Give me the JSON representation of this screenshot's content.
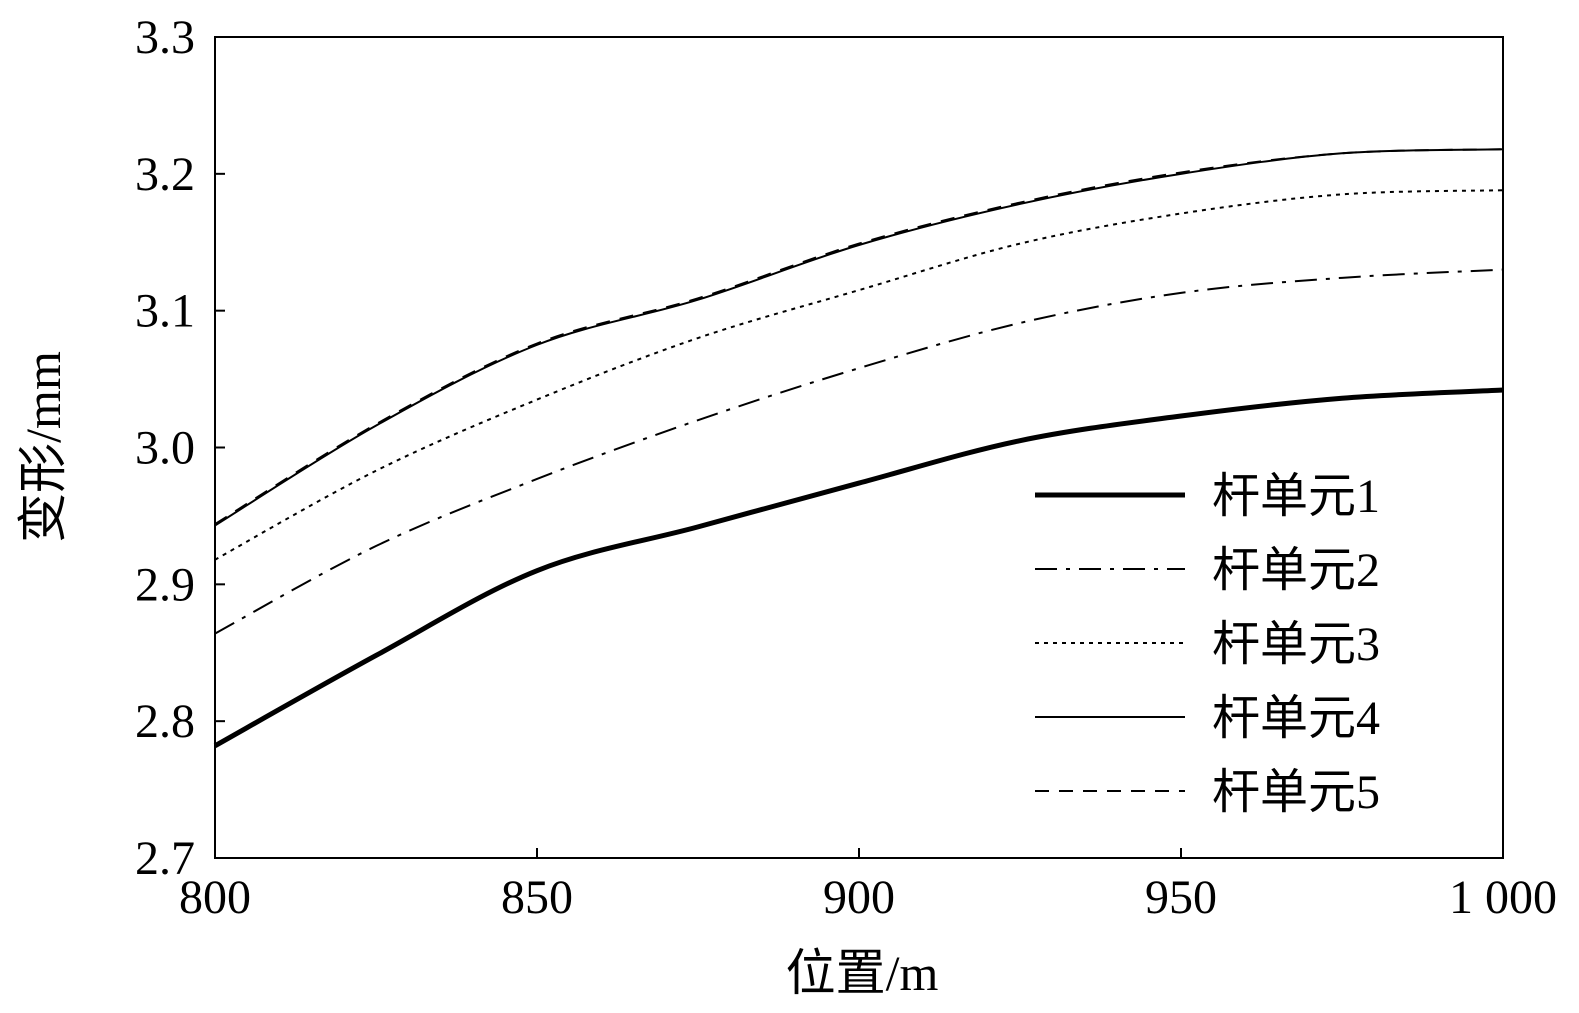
{
  "chart_data": {
    "type": "line",
    "title": "",
    "xlabel": "位置/m",
    "ylabel": "变形/mm",
    "xlim": [
      800,
      1000
    ],
    "ylim": [
      2.7,
      3.3
    ],
    "xticks": [
      800,
      850,
      900,
      950,
      1000
    ],
    "xtick_labels": [
      "800",
      "850",
      "900",
      "950",
      "1 000"
    ],
    "yticks": [
      2.7,
      2.8,
      2.9,
      3.0,
      3.1,
      3.2,
      3.3
    ],
    "ytick_labels": [
      "2.7",
      "2.8",
      "2.9",
      "3.0",
      "3.1",
      "3.2",
      "3.3"
    ],
    "grid": false,
    "legend_position": "bottom-right",
    "x": [
      800,
      825,
      850,
      875,
      900,
      925,
      950,
      975,
      1000
    ],
    "series": [
      {
        "name": "杆单元1",
        "style": "thick-solid",
        "values": [
          2.782,
          2.848,
          2.91,
          2.942,
          2.974,
          3.005,
          3.023,
          3.036,
          3.042
        ]
      },
      {
        "name": "杆单元2",
        "style": "dash-dot",
        "values": [
          2.864,
          2.928,
          2.977,
          3.02,
          3.058,
          3.091,
          3.113,
          3.124,
          3.13
        ]
      },
      {
        "name": "杆单元3",
        "style": "dotted",
        "values": [
          2.918,
          2.983,
          3.035,
          3.08,
          3.115,
          3.149,
          3.171,
          3.185,
          3.188
        ]
      },
      {
        "name": "杆单元4",
        "style": "solid",
        "values": [
          2.943,
          3.016,
          3.075,
          3.108,
          3.148,
          3.178,
          3.2,
          3.215,
          3.218
        ]
      },
      {
        "name": "杆单元5",
        "style": "dashed",
        "values": [
          2.944,
          3.017,
          3.076,
          3.109,
          3.149,
          3.179,
          3.201,
          3.215,
          3.218
        ]
      }
    ]
  }
}
